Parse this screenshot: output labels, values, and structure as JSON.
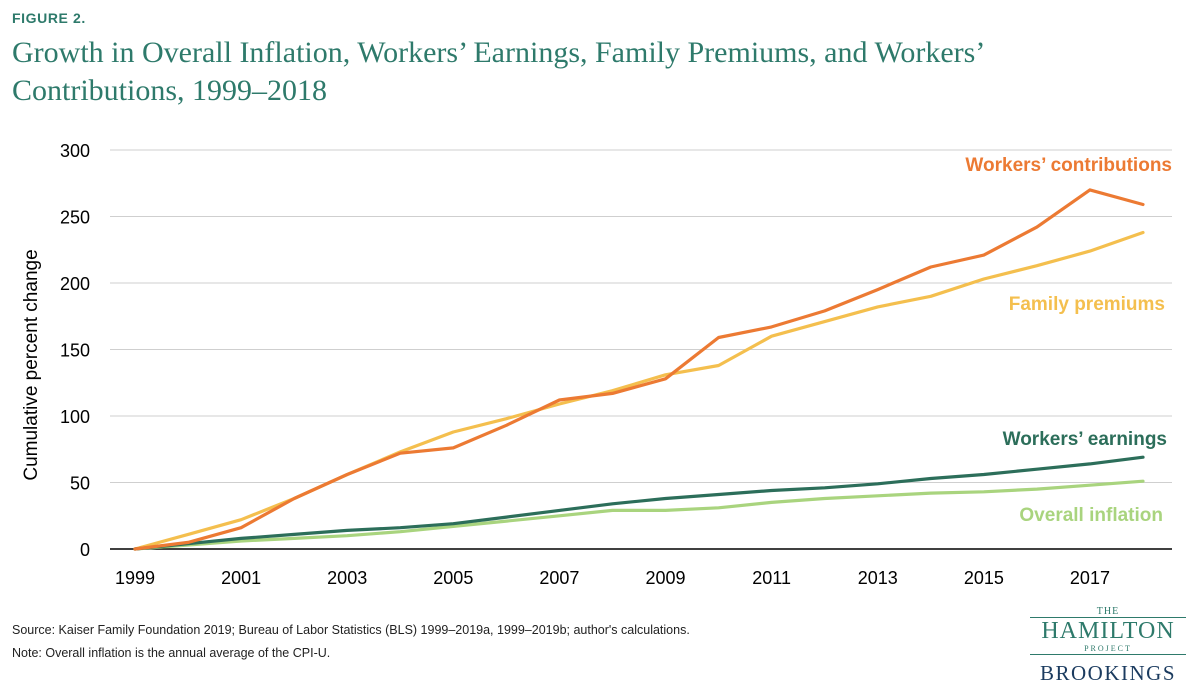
{
  "figure_label": "FIGURE 2.",
  "title": "Growth in Overall Inflation, Workers’ Earnings, Family Premiums, and Workers’ Contributions, 1999–2018",
  "source": "Source: Kaiser Family Foundation 2019; Bureau of Labor Statistics (BLS) 1999–2019a, 1999–2019b; author's calculations.",
  "note": "Note: Overall inflation is the annual average of the CPI-U.",
  "logo": {
    "the": "THE",
    "hamilton": "HAMILTON",
    "project": "PROJECT",
    "brookings": "BROOKINGS"
  },
  "colors": {
    "title": "#2e7a6b",
    "workers_contributions": "#ec7a33",
    "family_premiums": "#f4bf4e",
    "workers_earnings": "#2c6e5a",
    "overall_inflation": "#a9d47e",
    "grid": "#cfcfcf"
  },
  "chart_data": {
    "type": "line",
    "title": "",
    "xlabel": "",
    "ylabel": "Cumulative percent change",
    "xlim": [
      1999,
      2018
    ],
    "ylim": [
      0,
      300
    ],
    "yticks": [
      0,
      50,
      100,
      150,
      200,
      250,
      300
    ],
    "xticks": [
      1999,
      2001,
      2003,
      2005,
      2007,
      2009,
      2011,
      2013,
      2015,
      2017
    ],
    "grid": "horizontal",
    "legend": "inline labels",
    "x": [
      1999,
      2000,
      2001,
      2002,
      2003,
      2004,
      2005,
      2006,
      2007,
      2008,
      2009,
      2010,
      2011,
      2012,
      2013,
      2014,
      2015,
      2016,
      2017,
      2018
    ],
    "series": [
      {
        "name": "Workers’ contributions",
        "color_key": "workers_contributions",
        "values": [
          0,
          5,
          16,
          38,
          56,
          72,
          76,
          93,
          112,
          117,
          128,
          159,
          167,
          179,
          195,
          212,
          221,
          242,
          270,
          259
        ]
      },
      {
        "name": "Family premiums",
        "color_key": "family_premiums",
        "values": [
          0,
          11,
          22,
          38,
          56,
          73,
          88,
          98,
          109,
          119,
          131,
          138,
          160,
          171,
          182,
          190,
          203,
          213,
          224,
          238
        ]
      },
      {
        "name": "Workers’ earnings",
        "color_key": "workers_earnings",
        "values": [
          0,
          4,
          8,
          11,
          14,
          16,
          19,
          24,
          29,
          34,
          38,
          41,
          44,
          46,
          49,
          53,
          56,
          60,
          64,
          69
        ]
      },
      {
        "name": "Overall inflation",
        "color_key": "overall_inflation",
        "values": [
          0,
          3,
          6,
          8,
          10,
          13,
          17,
          21,
          25,
          29,
          29,
          31,
          35,
          38,
          40,
          42,
          43,
          45,
          48,
          51
        ]
      }
    ]
  }
}
